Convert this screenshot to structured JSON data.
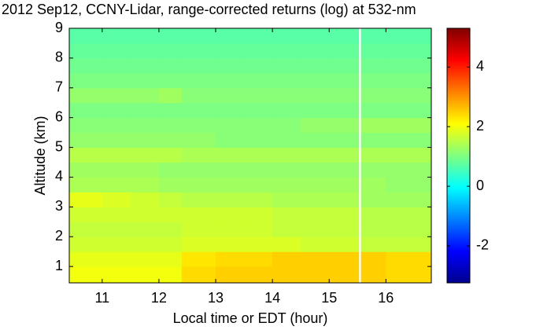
{
  "chart_data": {
    "type": "heatmap",
    "title": "2012 Sep12, CCNY-Lidar, range-corrected returns (log) at 532-nm",
    "xlabel": "Local time or EDT (hour)",
    "ylabel": "Altitude (km)",
    "xlim": [
      10.42,
      16.8
    ],
    "ylim": [
      0.45,
      9
    ],
    "xticks": [
      11,
      12,
      13,
      14,
      15,
      16
    ],
    "yticks": [
      1,
      2,
      3,
      4,
      5,
      6,
      7,
      8,
      9
    ],
    "clim": [
      -3.24,
      5.3
    ],
    "cticks": [
      -2,
      0,
      2,
      4
    ],
    "colormap": "jet",
    "x_edges": [
      10.42,
      11,
      11.5,
      12,
      12.4,
      13,
      13.5,
      14,
      14.5,
      15,
      15.52,
      15.56,
      16,
      16.8
    ],
    "y_edges": [
      0.45,
      1,
      1.5,
      2,
      2.5,
      3,
      3.5,
      4,
      4.5,
      5,
      5.5,
      6,
      6.5,
      7,
      7.5,
      8,
      8.5,
      9
    ],
    "values": [
      [
        2.0,
        2.0,
        2.0,
        2.0,
        2.4,
        2.5,
        2.5,
        2.5,
        2.5,
        2.5,
        null,
        2.5,
        2.4
      ],
      [
        1.9,
        1.9,
        1.9,
        1.9,
        2.3,
        2.4,
        2.4,
        2.5,
        2.5,
        2.5,
        null,
        2.5,
        2.4
      ],
      [
        1.7,
        1.7,
        1.7,
        1.7,
        1.8,
        1.8,
        1.8,
        1.8,
        1.7,
        1.7,
        null,
        1.6,
        1.6
      ],
      [
        1.6,
        1.6,
        1.6,
        1.6,
        1.7,
        1.7,
        1.7,
        1.6,
        1.6,
        1.6,
        null,
        1.5,
        1.5
      ],
      [
        1.7,
        1.7,
        1.7,
        1.7,
        1.7,
        1.7,
        1.7,
        1.6,
        1.6,
        1.6,
        null,
        1.5,
        1.5
      ],
      [
        1.9,
        1.8,
        1.7,
        1.6,
        1.5,
        1.5,
        1.5,
        1.4,
        1.4,
        1.4,
        null,
        1.3,
        1.3
      ],
      [
        1.4,
        1.4,
        1.4,
        1.3,
        1.3,
        1.3,
        1.3,
        1.3,
        1.3,
        1.3,
        null,
        1.3,
        1.2
      ],
      [
        1.3,
        1.3,
        1.3,
        1.2,
        1.2,
        1.2,
        1.2,
        1.2,
        1.2,
        1.2,
        null,
        1.2,
        1.2
      ],
      [
        1.5,
        1.5,
        1.5,
        1.5,
        1.4,
        1.4,
        1.4,
        1.4,
        1.4,
        1.4,
        null,
        1.4,
        1.4
      ],
      [
        1.2,
        1.2,
        1.2,
        1.2,
        1.2,
        1.1,
        1.1,
        1.1,
        1.1,
        1.1,
        null,
        1.1,
        1.1
      ],
      [
        1.1,
        1.1,
        1.1,
        1.1,
        1.1,
        1.1,
        1.1,
        1.1,
        1.2,
        1.2,
        null,
        1.3,
        1.3
      ],
      [
        1.0,
        1.0,
        1.0,
        1.0,
        1.0,
        1.0,
        1.0,
        1.0,
        1.0,
        1.0,
        null,
        1.0,
        1.0
      ],
      [
        1.2,
        1.2,
        1.2,
        1.3,
        1.1,
        1.1,
        1.1,
        1.1,
        1.1,
        1.1,
        null,
        1.1,
        1.1
      ],
      [
        1.0,
        1.0,
        1.0,
        1.0,
        1.0,
        1.0,
        1.0,
        1.0,
        1.0,
        1.0,
        null,
        1.0,
        1.0
      ],
      [
        0.9,
        0.9,
        0.9,
        0.9,
        0.9,
        0.9,
        0.9,
        0.9,
        0.9,
        0.9,
        null,
        0.9,
        0.9
      ],
      [
        0.8,
        0.8,
        0.8,
        0.8,
        0.8,
        0.8,
        0.8,
        0.8,
        0.8,
        0.8,
        null,
        0.8,
        0.8
      ],
      [
        0.7,
        0.7,
        0.7,
        0.7,
        0.7,
        0.7,
        0.7,
        0.7,
        0.7,
        0.7,
        null,
        0.7,
        0.7
      ]
    ]
  }
}
